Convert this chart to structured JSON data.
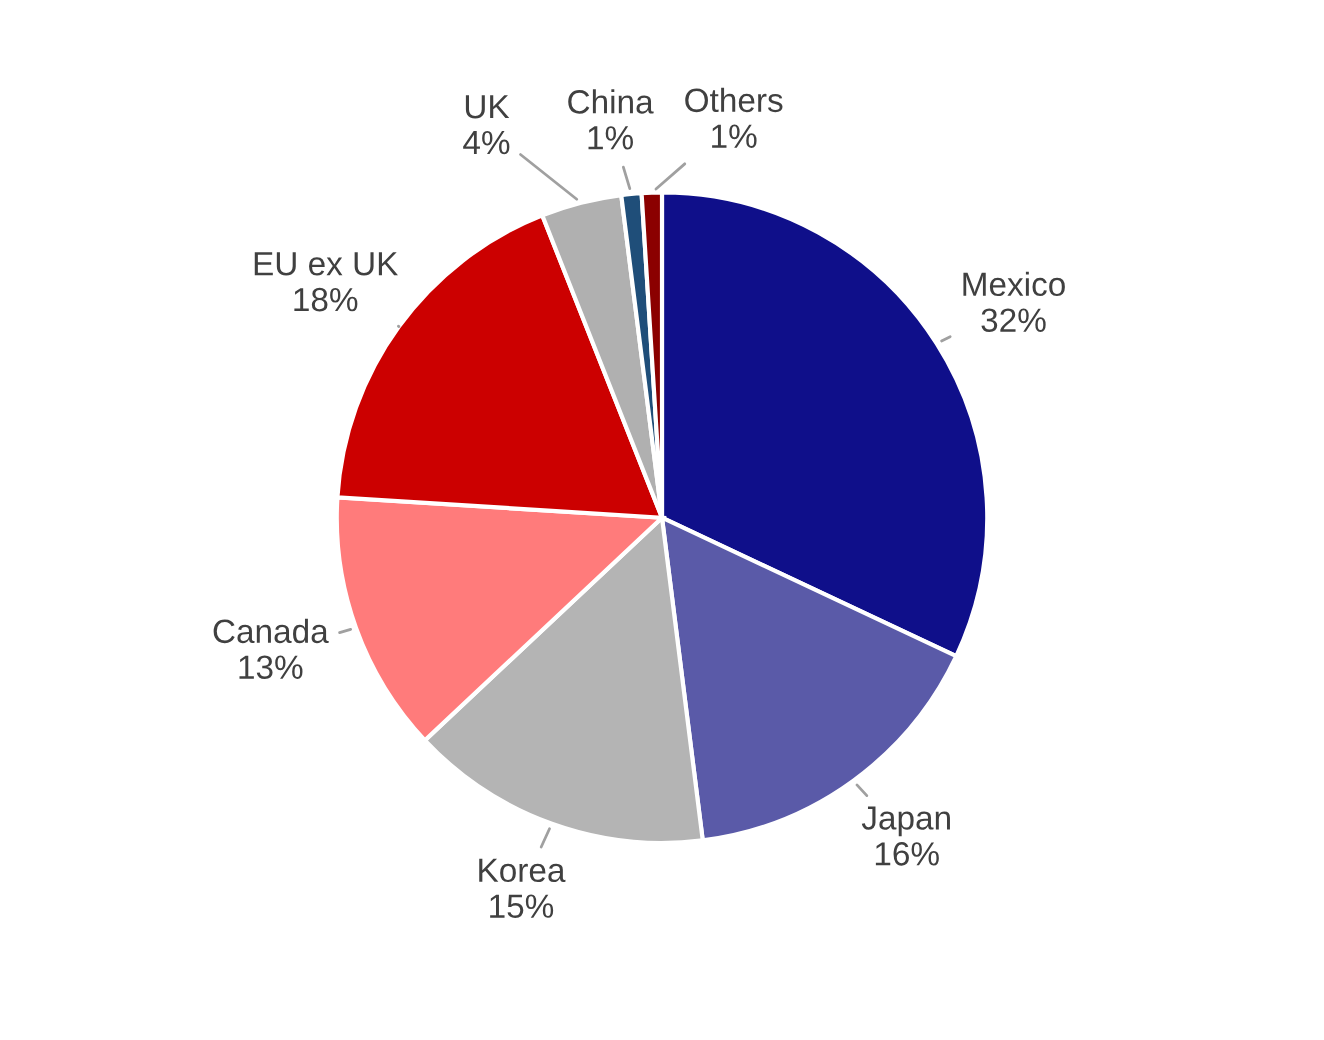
{
  "chart_data": {
    "type": "pie",
    "categories": [
      "Mexico",
      "Japan",
      "Korea",
      "Canada",
      "EU ex UK",
      "UK",
      "China",
      "Others"
    ],
    "values": [
      32,
      16,
      15,
      13,
      18,
      4,
      1,
      1
    ],
    "colors": [
      "#0f0f8a",
      "#5a5aa8",
      "#b4b4b4",
      "#ff7b7b",
      "#cc0000",
      "#b0b0b0",
      "#1f4e79",
      "#8b0000"
    ],
    "value_labels": [
      "32%",
      "16%",
      "15%",
      "13%",
      "18%",
      "4%",
      "1%",
      "1%"
    ]
  }
}
